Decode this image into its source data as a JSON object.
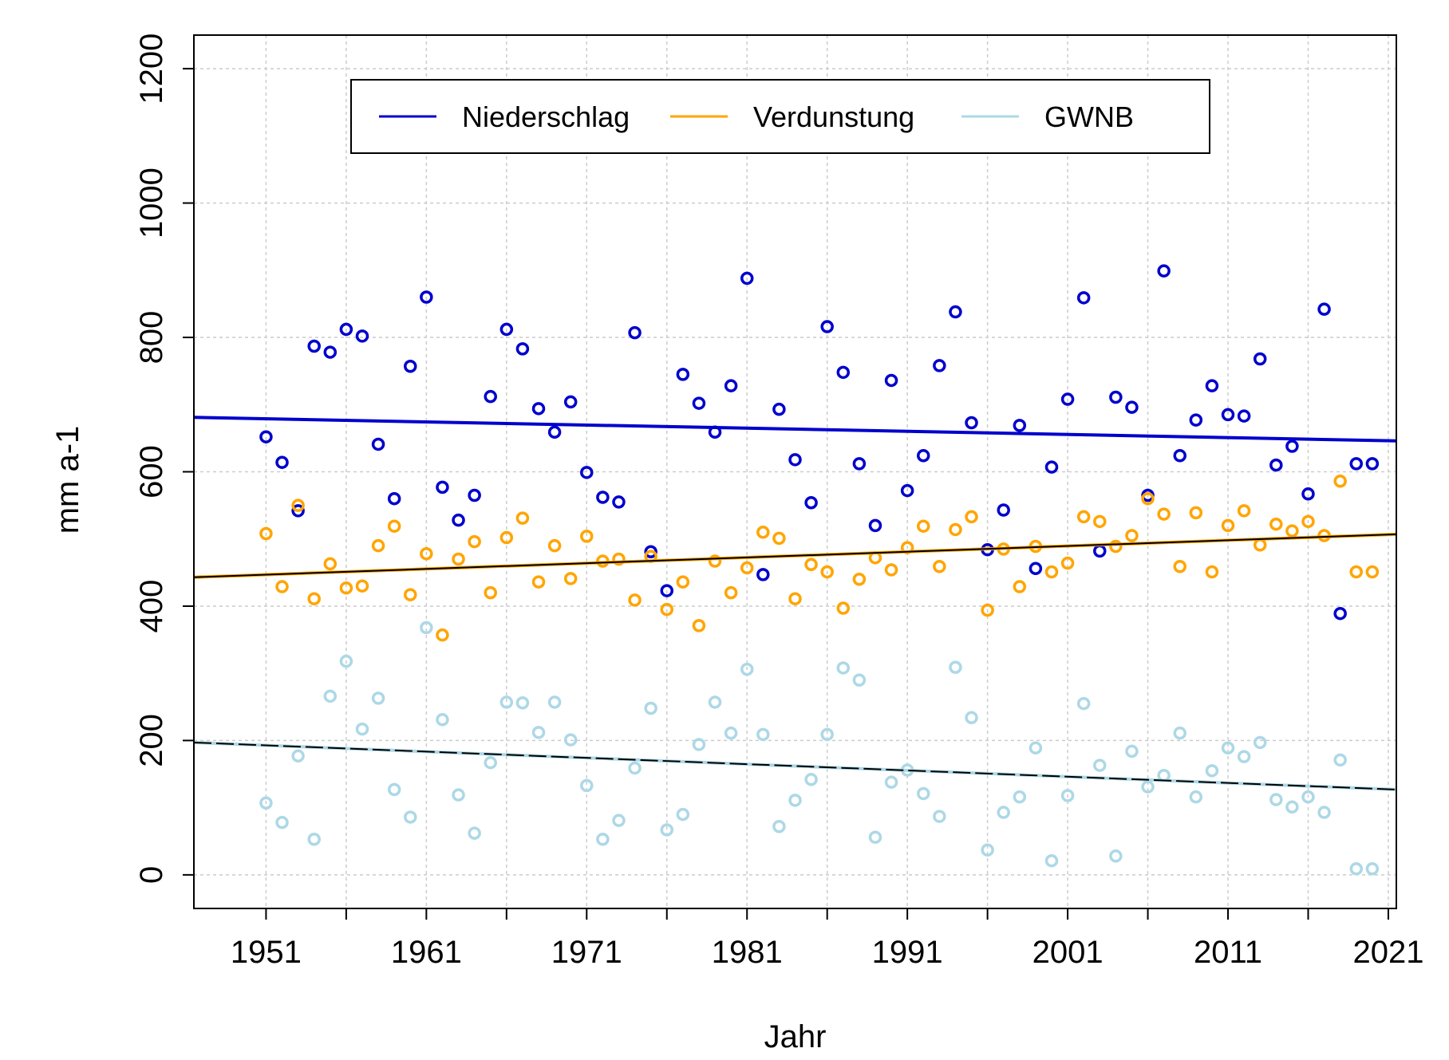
{
  "chart_data": {
    "type": "scatter",
    "xlabel": "Jahr",
    "ylabel": "mm a-1",
    "xlim": [
      1946.5,
      2021.5
    ],
    "ylim": [
      -50,
      1250
    ],
    "x_ticks": [
      1951,
      1956,
      1961,
      1966,
      1971,
      1976,
      1981,
      1986,
      1991,
      1996,
      2001,
      2006,
      2011,
      2016,
      2021
    ],
    "x_tick_labels": [
      "1951",
      "1961",
      "1971",
      "1981",
      "1991",
      "2001",
      "2011",
      "2021"
    ],
    "x_tick_label_values": [
      1951,
      1961,
      1971,
      1981,
      1991,
      2001,
      2011,
      2021
    ],
    "y_ticks": [
      0,
      200,
      400,
      600,
      800,
      1000,
      1200
    ],
    "y_tick_labels": [
      "0",
      "200",
      "400",
      "600",
      "800",
      "1000",
      "1200"
    ],
    "grid": true,
    "legend_position": "top",
    "legend": [
      "Niederschlag",
      "Verdunstung",
      "GWNB"
    ],
    "series": [
      {
        "name": "Niederschlag",
        "color": "#0000CD",
        "trend": [
          681,
          646
        ],
        "x": [
          1951,
          1952,
          1953,
          1954,
          1955,
          1956,
          1957,
          1958,
          1959,
          1960,
          1961,
          1962,
          1963,
          1964,
          1965,
          1966,
          1967,
          1968,
          1969,
          1970,
          1971,
          1972,
          1973,
          1974,
          1975,
          1976,
          1977,
          1978,
          1979,
          1980,
          1981,
          1982,
          1983,
          1984,
          1985,
          1986,
          1987,
          1988,
          1989,
          1990,
          1991,
          1992,
          1993,
          1994,
          1995,
          1996,
          1997,
          1998,
          1999,
          2000,
          2001,
          2002,
          2003,
          2004,
          2005,
          2006,
          2007,
          2008,
          2009,
          2010,
          2011,
          2012,
          2013,
          2014,
          2015,
          2016,
          2017,
          2018,
          2019,
          2020
        ],
        "y": [
          652,
          614,
          542,
          787,
          778,
          812,
          802,
          641,
          560,
          757,
          860,
          577,
          528,
          565,
          712,
          812,
          783,
          694,
          659,
          704,
          599,
          562,
          555,
          807,
          481,
          423,
          745,
          702,
          659,
          728,
          888,
          447,
          693,
          618,
          554,
          816,
          748,
          612,
          520,
          736,
          572,
          624,
          758,
          838,
          673,
          484,
          543,
          669,
          456,
          607,
          708,
          859,
          482,
          711,
          696,
          565,
          899,
          624,
          677,
          728,
          685,
          683,
          768,
          610,
          638,
          567,
          842,
          389,
          612,
          612
        ]
      },
      {
        "name": "Verdunstung",
        "color": "#FFA500",
        "trend": [
          443,
          507
        ],
        "x": [
          1951,
          1952,
          1953,
          1954,
          1955,
          1956,
          1957,
          1958,
          1959,
          1960,
          1961,
          1962,
          1963,
          1964,
          1965,
          1966,
          1967,
          1968,
          1969,
          1970,
          1971,
          1972,
          1973,
          1974,
          1975,
          1976,
          1977,
          1978,
          1979,
          1980,
          1981,
          1982,
          1983,
          1984,
          1985,
          1986,
          1987,
          1988,
          1989,
          1990,
          1991,
          1992,
          1993,
          1994,
          1995,
          1996,
          1997,
          1998,
          1999,
          2000,
          2001,
          2002,
          2003,
          2004,
          2005,
          2006,
          2007,
          2008,
          2009,
          2010,
          2011,
          2012,
          2013,
          2014,
          2015,
          2016,
          2017,
          2018,
          2019,
          2020
        ],
        "y": [
          508,
          429,
          550,
          411,
          463,
          427,
          430,
          490,
          519,
          417,
          478,
          357,
          470,
          496,
          420,
          502,
          531,
          436,
          490,
          441,
          504,
          467,
          470,
          409,
          474,
          395,
          436,
          371,
          467,
          420,
          457,
          510,
          501,
          411,
          462,
          451,
          397,
          440,
          472,
          454,
          487,
          519,
          459,
          514,
          533,
          394,
          485,
          429,
          489,
          451,
          464,
          533,
          526,
          489,
          505,
          560,
          537,
          459,
          539,
          451,
          520,
          542,
          491,
          522,
          512,
          526,
          505,
          586,
          451,
          451
        ]
      },
      {
        "name": "GWNB",
        "color": "#ADD8E6",
        "trend": [
          197,
          127
        ],
        "x": [
          1951,
          1952,
          1953,
          1954,
          1955,
          1956,
          1957,
          1958,
          1959,
          1960,
          1961,
          1962,
          1963,
          1964,
          1965,
          1966,
          1967,
          1968,
          1969,
          1970,
          1971,
          1972,
          1973,
          1974,
          1975,
          1976,
          1977,
          1978,
          1979,
          1980,
          1981,
          1982,
          1983,
          1984,
          1985,
          1986,
          1987,
          1988,
          1989,
          1990,
          1991,
          1992,
          1993,
          1994,
          1995,
          1996,
          1997,
          1998,
          1999,
          2000,
          2001,
          2002,
          2003,
          2004,
          2005,
          2006,
          2007,
          2008,
          2009,
          2010,
          2011,
          2012,
          2013,
          2014,
          2015,
          2016,
          2017,
          2018,
          2019,
          2020
        ],
        "y": [
          107,
          78,
          177,
          53,
          266,
          318,
          217,
          263,
          127,
          86,
          368,
          231,
          119,
          62,
          167,
          257,
          256,
          212,
          257,
          201,
          133,
          53,
          81,
          159,
          248,
          67,
          90,
          194,
          257,
          211,
          306,
          209,
          72,
          111,
          142,
          209,
          308,
          290,
          56,
          138,
          156,
          121,
          87,
          309,
          234,
          37,
          93,
          116,
          189,
          21,
          118,
          255,
          163,
          28,
          184,
          131,
          148,
          211,
          116,
          155,
          189,
          176,
          197,
          112,
          101,
          116,
          93,
          171,
          9,
          9
        ]
      }
    ]
  }
}
